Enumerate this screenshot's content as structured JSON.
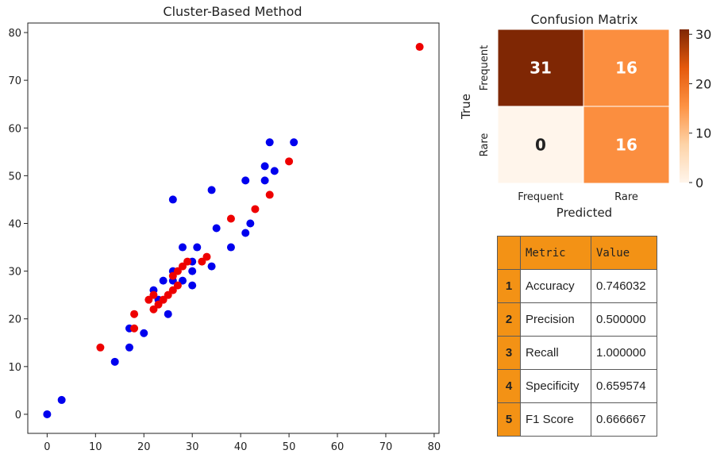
{
  "chart_data": [
    {
      "type": "scatter",
      "title": "Cluster-Based Method",
      "xlabel": "",
      "ylabel": "",
      "xlim": [
        -4,
        81
      ],
      "ylim": [
        -4,
        82
      ],
      "xticks": [
        0,
        10,
        20,
        30,
        40,
        50,
        60,
        70,
        80
      ],
      "yticks": [
        0,
        10,
        20,
        30,
        40,
        50,
        60,
        70,
        80
      ],
      "grid": false,
      "series": [
        {
          "color": "#0000ee",
          "points": [
            [
              0,
              0
            ],
            [
              3,
              3
            ],
            [
              14,
              11
            ],
            [
              17,
              14
            ],
            [
              17,
              18
            ],
            [
              20,
              17
            ],
            [
              22,
              26
            ],
            [
              23,
              24
            ],
            [
              24,
              28
            ],
            [
              25,
              21
            ],
            [
              26,
              28
            ],
            [
              26,
              30
            ],
            [
              26,
              45
            ],
            [
              28,
              28
            ],
            [
              28,
              35
            ],
            [
              30,
              27
            ],
            [
              30,
              30
            ],
            [
              30,
              32
            ],
            [
              31,
              35
            ],
            [
              34,
              31
            ],
            [
              34,
              47
            ],
            [
              35,
              39
            ],
            [
              38,
              35
            ],
            [
              41,
              38
            ],
            [
              41,
              49
            ],
            [
              42,
              40
            ],
            [
              45,
              49
            ],
            [
              45,
              52
            ],
            [
              46,
              57
            ],
            [
              47,
              51
            ],
            [
              51,
              57
            ]
          ]
        },
        {
          "color": "#ee0000",
          "points": [
            [
              11,
              14
            ],
            [
              18,
              18
            ],
            [
              18,
              21
            ],
            [
              21,
              24
            ],
            [
              22,
              22
            ],
            [
              22,
              25
            ],
            [
              23,
              23
            ],
            [
              24,
              24
            ],
            [
              25,
              25
            ],
            [
              26,
              26
            ],
            [
              26,
              29
            ],
            [
              27,
              27
            ],
            [
              27,
              30
            ],
            [
              28,
              31
            ],
            [
              29,
              32
            ],
            [
              32,
              32
            ],
            [
              33,
              33
            ],
            [
              38,
              41
            ],
            [
              43,
              43
            ],
            [
              46,
              46
            ],
            [
              50,
              53
            ],
            [
              77,
              77
            ]
          ]
        }
      ]
    },
    {
      "type": "heatmap",
      "title": "Confusion Matrix",
      "xlabel": "Predicted",
      "ylabel": "True",
      "x_categories": [
        "Frequent",
        "Rare"
      ],
      "y_categories": [
        "Frequent",
        "Rare"
      ],
      "values": [
        [
          31,
          16
        ],
        [
          0,
          16
        ]
      ],
      "colorbar": {
        "min": 0,
        "max": 31,
        "ticks": [
          0,
          10,
          20,
          30
        ]
      },
      "colormap": "Oranges"
    },
    {
      "type": "table",
      "columns": [
        "",
        "Metric",
        "Value"
      ],
      "rows": [
        [
          "1",
          "Accuracy",
          "0.746032"
        ],
        [
          "2",
          "Precision",
          "0.500000"
        ],
        [
          "3",
          "Recall",
          "1.000000"
        ],
        [
          "4",
          "Specificity",
          "0.659574"
        ],
        [
          "5",
          "F1 Score",
          "0.666667"
        ]
      ]
    }
  ]
}
